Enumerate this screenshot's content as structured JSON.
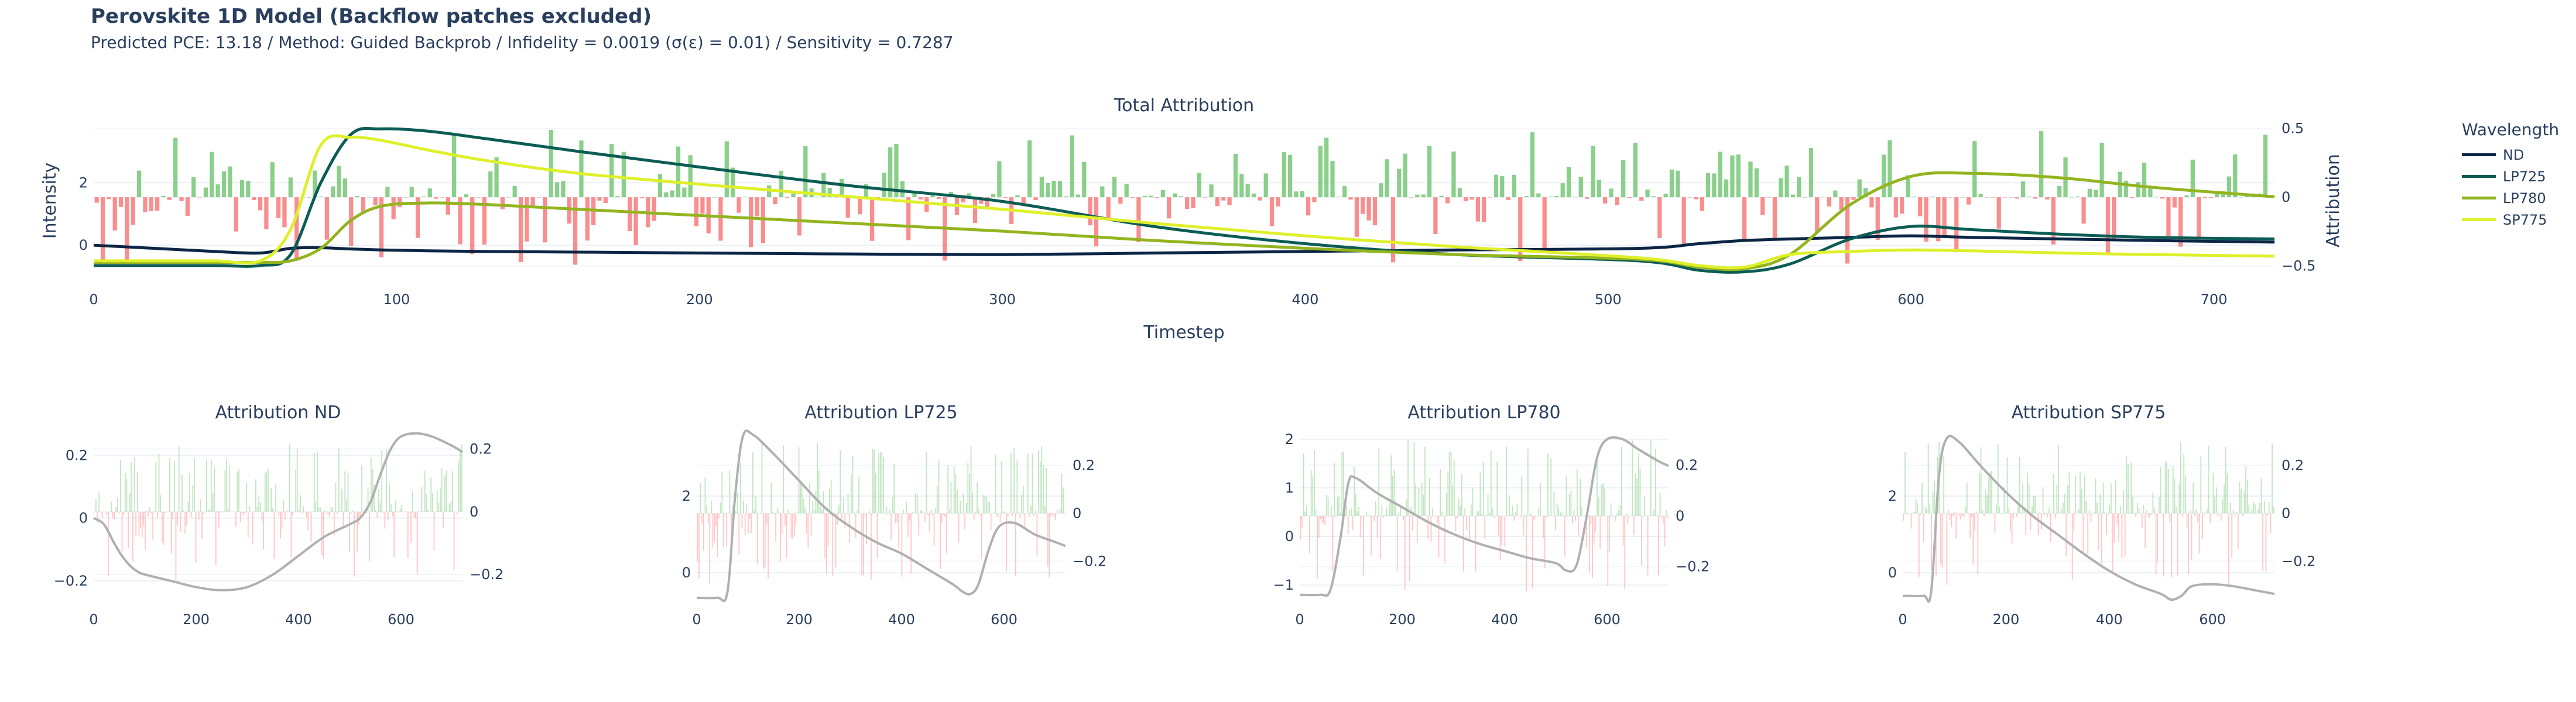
{
  "header": {
    "title": "Perovskite 1D Model (Backflow patches excluded)",
    "subtitle": "Predicted PCE: 13.18 / Method: Guided Backprob / Infidelity = 0.0019 (σ(ε) = 0.01) / Sensitivity = 0.7287"
  },
  "legend": {
    "title": "Wavelength",
    "items": [
      {
        "name": "ND",
        "color": "#0b2545"
      },
      {
        "name": "LP725",
        "color": "#0b5c54"
      },
      {
        "name": "LP780",
        "color": "#93b41e"
      },
      {
        "name": "SP775",
        "color": "#dff02a"
      }
    ]
  },
  "chart_data": [
    {
      "type": "line",
      "title": "Total Attribution",
      "xlabel": "Timestep",
      "ylabel": "Intensity",
      "y2label": "Attribution",
      "xlim": [
        0,
        720
      ],
      "ylim": [
        -1.1,
        3.95
      ],
      "y2lim": [
        -0.6,
        0.55
      ],
      "xticks": [
        0,
        100,
        200,
        300,
        400,
        500,
        600,
        700
      ],
      "yticks": [
        0,
        2
      ],
      "y2ticks": [
        -0.5,
        0,
        0.5
      ],
      "grid": true,
      "legend_position": "right",
      "x": [
        0,
        20,
        40,
        55,
        65,
        75,
        85,
        95,
        110,
        130,
        160,
        200,
        250,
        300,
        350,
        400,
        450,
        510,
        530,
        545,
        560,
        580,
        600,
        620,
        650,
        680,
        720
      ],
      "series": [
        {
          "name": "ND",
          "color": "#0b2545",
          "values": [
            0.0,
            -0.1,
            -0.2,
            -0.25,
            -0.1,
            -0.08,
            -0.12,
            -0.15,
            -0.18,
            -0.2,
            -0.22,
            -0.25,
            -0.28,
            -0.3,
            -0.25,
            -0.2,
            -0.15,
            -0.1,
            0.05,
            0.15,
            0.2,
            0.25,
            0.3,
            0.25,
            0.2,
            0.15,
            0.1
          ]
        },
        {
          "name": "LP725",
          "color": "#0b5c54",
          "values": [
            -0.65,
            -0.65,
            -0.65,
            -0.65,
            -0.3,
            2.0,
            3.55,
            3.72,
            3.65,
            3.4,
            3.0,
            2.5,
            1.9,
            1.4,
            0.6,
            0.05,
            -0.3,
            -0.5,
            -0.8,
            -0.85,
            -0.6,
            0.2,
            0.6,
            0.5,
            0.35,
            0.25,
            0.2
          ]
        },
        {
          "name": "LP780",
          "color": "#93b41e",
          "values": [
            -0.55,
            -0.55,
            -0.55,
            -0.55,
            -0.5,
            -0.1,
            0.8,
            1.25,
            1.35,
            1.3,
            1.15,
            0.95,
            0.7,
            0.45,
            0.15,
            -0.1,
            -0.3,
            -0.45,
            -0.7,
            -0.75,
            -0.3,
            1.3,
            2.2,
            2.3,
            2.15,
            1.85,
            1.55
          ]
        },
        {
          "name": "SP775",
          "color": "#dff02a",
          "values": [
            -0.5,
            -0.5,
            -0.5,
            -0.5,
            0.5,
            3.2,
            3.45,
            3.35,
            3.05,
            2.7,
            2.3,
            1.95,
            1.55,
            1.15,
            0.7,
            0.3,
            -0.05,
            -0.4,
            -0.65,
            -0.7,
            -0.3,
            -0.2,
            -0.15,
            -0.18,
            -0.25,
            -0.3,
            -0.35
          ]
        }
      ],
      "attribution_bars": {
        "axis": "y2",
        "count": 360,
        "max_pos": 0.5,
        "max_neg": -0.5,
        "pos_color": "#76c776",
        "neg_color": "#f77a7a"
      }
    },
    {
      "type": "line",
      "title": "Attribution ND",
      "xlim": [
        0,
        720
      ],
      "ylim": [
        -0.26,
        0.29
      ],
      "y2lim": [
        -0.28,
        0.27
      ],
      "xticks": [
        0,
        200,
        400,
        600
      ],
      "yticks": [
        -0.2,
        0,
        0.2
      ],
      "y2ticks": [
        -0.2,
        0,
        0.2
      ],
      "x": [
        0,
        20,
        40,
        55,
        70,
        85,
        100,
        150,
        200,
        250,
        300,
        350,
        400,
        450,
        500,
        520,
        540,
        560,
        580,
        600,
        630,
        660,
        700,
        720
      ],
      "series": [
        {
          "name": "ND",
          "color": "#b0b0b0",
          "values": [
            0.0,
            -0.02,
            -0.08,
            -0.12,
            -0.15,
            -0.17,
            -0.18,
            -0.2,
            -0.22,
            -0.23,
            -0.22,
            -0.18,
            -0.12,
            -0.06,
            -0.02,
            0.0,
            0.05,
            0.14,
            0.22,
            0.26,
            0.27,
            0.26,
            0.23,
            0.21
          ]
        }
      ],
      "attribution_bars": {
        "axis": "y2",
        "count": 240,
        "max_pos": 0.22,
        "max_neg": -0.22,
        "pos_color": "#8fd18f",
        "neg_color": "#f99"
      }
    },
    {
      "type": "line",
      "title": "Attribution LP725",
      "xlim": [
        0,
        720
      ],
      "ylim": [
        -0.7,
        3.8
      ],
      "y2lim": [
        -0.36,
        0.36
      ],
      "xticks": [
        0,
        200,
        400,
        600
      ],
      "yticks": [
        0,
        2
      ],
      "y2ticks": [
        -0.2,
        0,
        0.2
      ],
      "x": [
        0,
        40,
        60,
        75,
        90,
        110,
        150,
        200,
        250,
        300,
        350,
        400,
        450,
        500,
        520,
        535,
        550,
        570,
        590,
        620,
        660,
        700,
        720
      ],
      "series": [
        {
          "name": "LP725",
          "color": "#b0b0b0",
          "values": [
            -0.65,
            -0.65,
            -0.5,
            2.0,
            3.55,
            3.6,
            3.1,
            2.4,
            1.7,
            1.2,
            0.8,
            0.5,
            0.1,
            -0.3,
            -0.5,
            -0.55,
            -0.3,
            0.6,
            1.2,
            1.3,
            1.0,
            0.8,
            0.7
          ]
        }
      ],
      "attribution_bars": {
        "axis": "y2",
        "count": 240,
        "max_pos": 0.3,
        "max_neg": -0.3,
        "pos_color": "#8fd18f",
        "neg_color": "#f99"
      }
    },
    {
      "type": "line",
      "title": "Attribution LP780",
      "xlim": [
        0,
        720
      ],
      "ylim": [
        -1.3,
        2.25
      ],
      "y2lim": [
        -0.33,
        0.35
      ],
      "xticks": [
        0,
        200,
        400,
        600
      ],
      "yticks": [
        -1,
        0,
        1,
        2
      ],
      "y2ticks": [
        -0.2,
        0,
        0.2
      ],
      "x": [
        0,
        40,
        60,
        80,
        95,
        110,
        150,
        200,
        250,
        300,
        350,
        400,
        450,
        500,
        520,
        540,
        560,
        580,
        600,
        630,
        660,
        700,
        720
      ],
      "series": [
        {
          "name": "LP780",
          "color": "#b0b0b0",
          "values": [
            -1.2,
            -1.2,
            -1.1,
            0.0,
            1.1,
            1.2,
            0.9,
            0.6,
            0.3,
            0.05,
            -0.15,
            -0.3,
            -0.45,
            -0.55,
            -0.7,
            -0.6,
            0.4,
            1.6,
            2.0,
            2.0,
            1.8,
            1.55,
            1.45
          ]
        }
      ],
      "attribution_bars": {
        "axis": "y2",
        "count": 240,
        "max_pos": 0.3,
        "max_neg": -0.3,
        "pos_color": "#8fd18f",
        "neg_color": "#f99"
      }
    },
    {
      "type": "line",
      "title": "Attribution SP775",
      "xlim": [
        0,
        720
      ],
      "ylim": [
        -0.7,
        3.8
      ],
      "y2lim": [
        -0.36,
        0.36
      ],
      "xticks": [
        0,
        200,
        400,
        600
      ],
      "yticks": [
        0,
        2
      ],
      "y2ticks": [
        -0.2,
        0,
        0.2
      ],
      "x": [
        0,
        40,
        55,
        70,
        85,
        110,
        150,
        200,
        250,
        300,
        350,
        400,
        450,
        500,
        520,
        540,
        560,
        600,
        640,
        680,
        720
      ],
      "series": [
        {
          "name": "SP775",
          "color": "#b0b0b0",
          "values": [
            -0.6,
            -0.6,
            -0.5,
            2.5,
            3.5,
            3.4,
            2.8,
            2.1,
            1.5,
            1.0,
            0.5,
            0.05,
            -0.3,
            -0.55,
            -0.7,
            -0.6,
            -0.35,
            -0.3,
            -0.35,
            -0.45,
            -0.55
          ]
        }
      ],
      "attribution_bars": {
        "axis": "y2",
        "count": 240,
        "max_pos": 0.3,
        "max_neg": -0.3,
        "pos_color": "#8fd18f",
        "neg_color": "#f99"
      }
    }
  ]
}
